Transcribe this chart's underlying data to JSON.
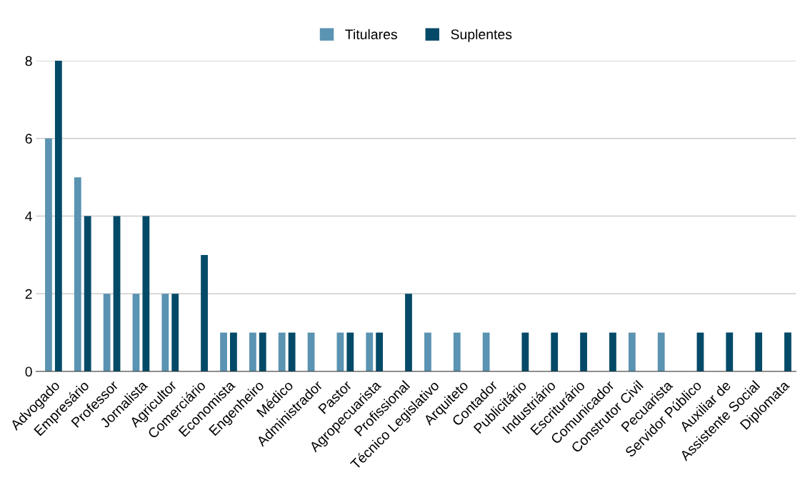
{
  "chart_data": {
    "type": "bar",
    "categories": [
      "Advogado",
      "Empresário",
      "Professor",
      "Jornalista",
      "Agricultor",
      "Comerciário",
      "Economista",
      "Engenheiro",
      "Médico",
      "Administrador",
      "Pastor",
      "Agropecuarista",
      "Profissional",
      "Técnico Legislativo",
      "Arquiteto",
      "Contador",
      "Publicitário",
      "Industriário",
      "Escriturário",
      "Comunicador",
      "Construtor Civil",
      "Pecuarista",
      "Servidor Público",
      "Auxiliar de",
      "Assistente Social",
      "Diplomata"
    ],
    "series": [
      {
        "name": "Titulares",
        "color": "#5b93b2",
        "values": [
          6,
          5,
          2,
          2,
          2,
          0,
          1,
          1,
          1,
          1,
          1,
          1,
          0,
          1,
          1,
          1,
          0,
          0,
          0,
          0,
          1,
          1,
          0,
          0,
          0,
          0
        ]
      },
      {
        "name": "Suplentes",
        "color": "#034a68",
        "values": [
          8,
          4,
          4,
          4,
          2,
          3,
          1,
          1,
          1,
          0,
          1,
          1,
          2,
          0,
          0,
          0,
          1,
          1,
          1,
          1,
          0,
          0,
          1,
          1,
          1,
          1
        ]
      }
    ],
    "ylim": [
      0,
      8
    ],
    "yticks": [
      0,
      2,
      4,
      6,
      8
    ],
    "grid": "y",
    "legend": "top"
  }
}
